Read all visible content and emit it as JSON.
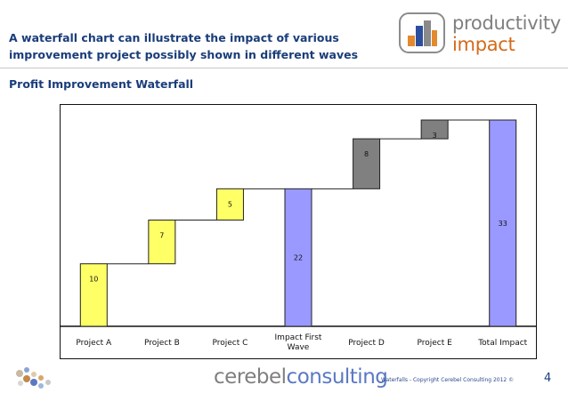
{
  "header": {
    "title_line1": "A waterfall chart can illustrate the impact of various",
    "title_line2": "improvement project possibly shown in different waves",
    "logo_line1": "productivity",
    "logo_line2": "impact"
  },
  "subtitle": "Profit Improvement Waterfall",
  "chart_data": {
    "type": "waterfall",
    "title": "Profit Improvement Waterfall",
    "categories": [
      "Project A",
      "Project B",
      "Project C",
      "Impact First Wave",
      "Project D",
      "Project E",
      "Total Impact"
    ],
    "category_lines": [
      [
        "Project A"
      ],
      [
        "Project B"
      ],
      [
        "Project C"
      ],
      [
        "Impact First",
        "Wave"
      ],
      [
        "Project D"
      ],
      [
        "Project E"
      ],
      [
        "Total Impact"
      ]
    ],
    "values": [
      10,
      7,
      5,
      22,
      8,
      3,
      33
    ],
    "bases": [
      0,
      10,
      17,
      0,
      22,
      30,
      0
    ],
    "kinds": [
      "step",
      "step",
      "step",
      "total",
      "step",
      "step",
      "total"
    ],
    "colors": {
      "wave1": "#ffff66",
      "subtotal": "#9999ff",
      "wave2": "#808080"
    },
    "bar_colors": [
      "#ffff66",
      "#ffff66",
      "#ffff66",
      "#9999ff",
      "#808080",
      "#808080",
      "#9999ff"
    ],
    "connectors": true,
    "ylim": [
      0,
      33
    ]
  },
  "footer": {
    "brand_part1": "cerebel",
    "brand_part2": "consulting",
    "note": "Waterfalls - Copyright Cerebel Consulting 2012 ©",
    "page_number": "4"
  }
}
